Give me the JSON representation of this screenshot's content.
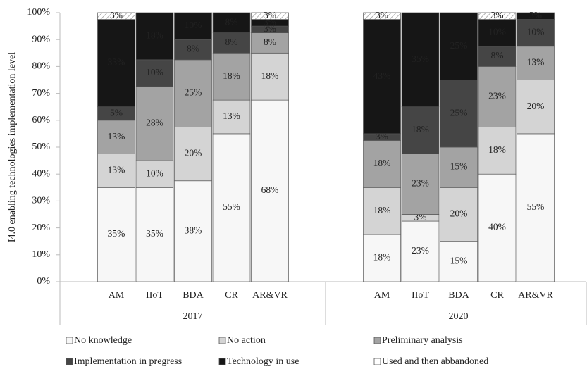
{
  "chart_data": {
    "type": "stacked_bar",
    "y_label": "I4.0 enabling technologies implementation level",
    "groups": [
      "2017",
      "2020"
    ],
    "categories": [
      "AM",
      "IIoT",
      "BDA",
      "CR",
      "AR&VR",
      "AM",
      "IIoT",
      "BDA",
      "CR",
      "AR&VR"
    ],
    "ylim": [
      0,
      100
    ],
    "yticks": [
      {
        "value": 0,
        "label": "0%"
      },
      {
        "value": 10,
        "label": "10%"
      },
      {
        "value": 20,
        "label": "20%"
      },
      {
        "value": 30,
        "label": "30%"
      },
      {
        "value": 40,
        "label": "40%"
      },
      {
        "value": 50,
        "label": "50%"
      },
      {
        "value": 60,
        "label": "60%"
      },
      {
        "value": 70,
        "label": "70%"
      },
      {
        "value": 80,
        "label": "80%"
      },
      {
        "value": 90,
        "label": "90%"
      },
      {
        "value": 100,
        "label": "100%"
      }
    ],
    "series": [
      {
        "name": "No knowledge",
        "color": "#f7f7f7",
        "values": [
          35,
          35,
          37.5,
          55,
          67.5,
          17.5,
          22.5,
          15,
          40,
          55
        ],
        "value_labels": [
          "35%",
          "35%",
          "38%",
          "55%",
          "68%",
          "18%",
          "23%",
          "15%",
          "40%",
          "55%"
        ]
      },
      {
        "name": "No action",
        "color": "#d4d4d4",
        "values": [
          12.5,
          10,
          20,
          12.5,
          17.5,
          17.5,
          2.5,
          20,
          17.5,
          20
        ],
        "value_labels": [
          "13%",
          "10%",
          "20%",
          "13%",
          "18%",
          "18%",
          "3%",
          "20%",
          "18%",
          "20%"
        ]
      },
      {
        "name": "Preliminary analysis",
        "color": "#a3a3a3",
        "values": [
          12.5,
          27.5,
          25,
          17.5,
          7.5,
          17.5,
          22.5,
          15,
          22.5,
          12.5
        ],
        "value_labels": [
          "13%",
          "28%",
          "25%",
          "18%",
          "8%",
          "18%",
          "23%",
          "15%",
          "23%",
          "13%"
        ]
      },
      {
        "name": "Implementation in pregress",
        "color": "#454545",
        "values": [
          5,
          10,
          7.5,
          7.5,
          2.5,
          2.5,
          17.5,
          25,
          7.5,
          10
        ],
        "value_labels": [
          "5%",
          "10%",
          "8%",
          "8%",
          "3%",
          "3%",
          "18%",
          "25%",
          "8%",
          "10%"
        ]
      },
      {
        "name": "Technology in use",
        "color": "#161616",
        "values": [
          32.5,
          17.5,
          10,
          7.5,
          2.5,
          42.5,
          35,
          25,
          10,
          2.5
        ],
        "value_labels": [
          "33%",
          "18%",
          "10%",
          "8%",
          "3%",
          "43%",
          "35%",
          "25%",
          "10%",
          "3%"
        ]
      },
      {
        "name": "Used and then abbandoned",
        "color": "#ffffff",
        "hatch": true,
        "values": [
          2.5,
          0,
          0,
          0,
          2.5,
          2.5,
          0,
          0,
          2.5,
          0
        ],
        "value_labels": [
          "3%",
          null,
          null,
          null,
          "3%",
          "3%",
          null,
          null,
          "3%",
          null
        ]
      }
    ]
  }
}
